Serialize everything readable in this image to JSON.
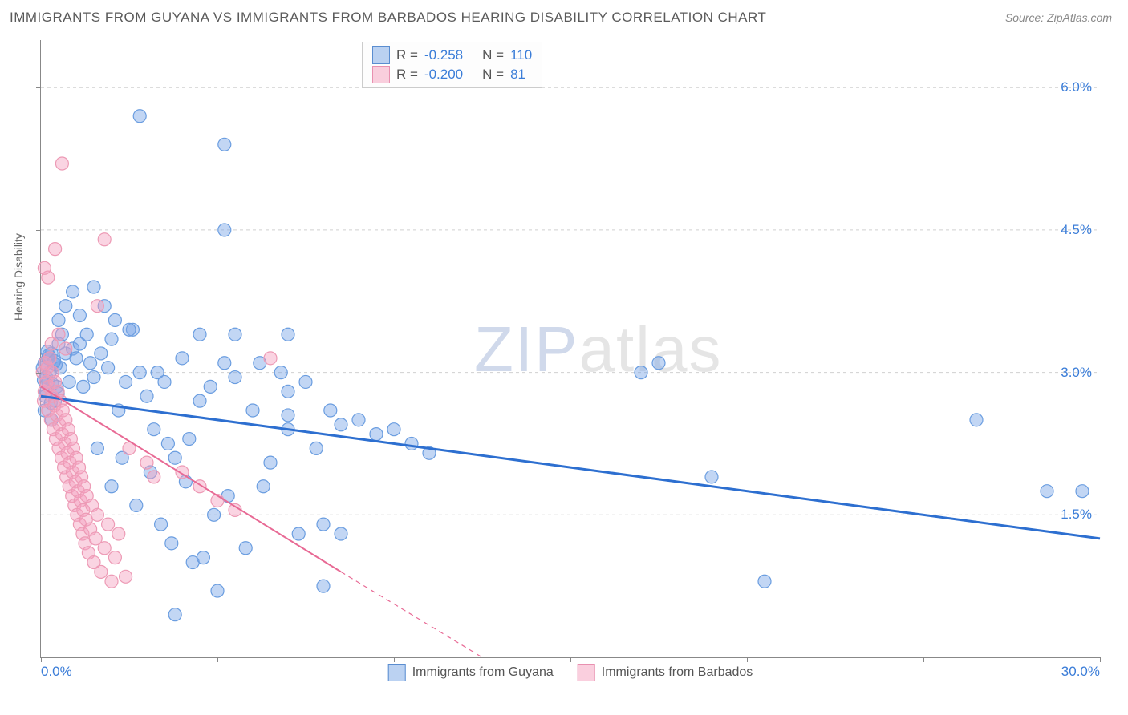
{
  "title": "IMMIGRANTS FROM GUYANA VS IMMIGRANTS FROM BARBADOS HEARING DISABILITY CORRELATION CHART",
  "source": "Source: ZipAtlas.com",
  "ylabel": "Hearing Disability",
  "watermark_a": "ZIP",
  "watermark_b": "atlas",
  "chart": {
    "type": "scatter",
    "xlim": [
      0,
      30
    ],
    "ylim": [
      0,
      6.5
    ],
    "x_tick_labels": {
      "left": "0.0%",
      "right": "30.0%"
    },
    "x_tick_positions": [
      0,
      5,
      10,
      15,
      20,
      25,
      30
    ],
    "y_grid": [
      1.5,
      3.0,
      4.5,
      6.0
    ],
    "y_tick_labels": [
      "1.5%",
      "3.0%",
      "4.5%",
      "6.0%"
    ],
    "background_color": "#ffffff",
    "grid_color": "#d0d0d0",
    "axis_color": "#888888"
  },
  "legend_top": {
    "rows": [
      {
        "swatch": "blue",
        "r_label": "R =",
        "r_val": "-0.258",
        "n_label": "N =",
        "n_val": "110"
      },
      {
        "swatch": "pink",
        "r_label": "R =",
        "r_val": "-0.200",
        "n_label": "N =",
        "n_val": " 81"
      }
    ]
  },
  "legend_bottom": {
    "items": [
      {
        "swatch": "blue",
        "label": "Immigrants from Guyana"
      },
      {
        "swatch": "pink",
        "label": "Immigrants from Barbados"
      }
    ]
  },
  "series": [
    {
      "name": "guyana",
      "color_fill": "rgba(120,165,230,0.45)",
      "color_stroke": "#6a9de0",
      "marker_radius": 8,
      "trend": {
        "x1": 0,
        "y1": 2.75,
        "x2": 30,
        "y2": 1.25,
        "stroke": "#2d6fd0",
        "width": 3,
        "dash": "none"
      },
      "points": [
        [
          0.1,
          3.1
        ],
        [
          0.2,
          2.9
        ],
        [
          0.3,
          3.2
        ],
        [
          0.15,
          2.8
        ],
        [
          0.25,
          3.0
        ],
        [
          0.35,
          3.1
        ],
        [
          0.4,
          2.7
        ],
        [
          0.1,
          2.6
        ],
        [
          0.5,
          3.3
        ],
        [
          0.3,
          2.5
        ],
        [
          0.6,
          3.4
        ],
        [
          0.2,
          3.15
        ],
        [
          0.45,
          2.85
        ],
        [
          0.55,
          3.05
        ],
        [
          0.15,
          2.95
        ],
        [
          0.7,
          3.2
        ],
        [
          0.8,
          2.9
        ],
        [
          0.9,
          3.25
        ],
        [
          1.0,
          3.15
        ],
        [
          1.1,
          3.3
        ],
        [
          1.3,
          3.4
        ],
        [
          1.2,
          2.85
        ],
        [
          1.4,
          3.1
        ],
        [
          1.5,
          2.95
        ],
        [
          1.7,
          3.2
        ],
        [
          1.9,
          3.05
        ],
        [
          2.0,
          3.35
        ],
        [
          2.2,
          2.6
        ],
        [
          2.4,
          2.9
        ],
        [
          2.6,
          3.45
        ],
        [
          2.8,
          3.0
        ],
        [
          2.8,
          5.7
        ],
        [
          3.0,
          2.75
        ],
        [
          3.2,
          2.4
        ],
        [
          3.3,
          3.0
        ],
        [
          3.5,
          2.9
        ],
        [
          3.7,
          1.2
        ],
        [
          3.8,
          2.1
        ],
        [
          3.8,
          0.45
        ],
        [
          4.0,
          3.15
        ],
        [
          4.2,
          2.3
        ],
        [
          4.3,
          1.0
        ],
        [
          4.5,
          2.7
        ],
        [
          4.5,
          3.4
        ],
        [
          4.8,
          2.85
        ],
        [
          5.0,
          0.7
        ],
        [
          5.2,
          3.1
        ],
        [
          5.2,
          4.5
        ],
        [
          5.2,
          5.4
        ],
        [
          5.5,
          2.95
        ],
        [
          5.5,
          3.4
        ],
        [
          6.0,
          2.6
        ],
        [
          6.2,
          3.1
        ],
        [
          6.3,
          1.8
        ],
        [
          6.5,
          2.05
        ],
        [
          6.8,
          3.0
        ],
        [
          7.0,
          2.4
        ],
        [
          7.0,
          2.8
        ],
        [
          7.0,
          3.4
        ],
        [
          7.0,
          2.55
        ],
        [
          7.3,
          1.3
        ],
        [
          7.5,
          2.9
        ],
        [
          7.8,
          2.2
        ],
        [
          8.0,
          0.75
        ],
        [
          8.0,
          1.4
        ],
        [
          8.2,
          2.6
        ],
        [
          8.5,
          1.3
        ],
        [
          8.5,
          2.45
        ],
        [
          9.0,
          2.5
        ],
        [
          9.5,
          2.35
        ],
        [
          10.0,
          2.4
        ],
        [
          10.5,
          2.25
        ],
        [
          11.0,
          2.15
        ],
        [
          1.5,
          3.9
        ],
        [
          1.8,
          3.7
        ],
        [
          2.1,
          3.55
        ],
        [
          2.5,
          3.45
        ],
        [
          0.5,
          3.55
        ],
        [
          0.7,
          3.7
        ],
        [
          0.9,
          3.85
        ],
        [
          1.1,
          3.6
        ],
        [
          17.0,
          3.0
        ],
        [
          17.5,
          3.1
        ],
        [
          19.0,
          1.9
        ],
        [
          20.5,
          0.8
        ],
        [
          26.5,
          2.5
        ],
        [
          29.5,
          1.75
        ],
        [
          2.0,
          1.8
        ],
        [
          2.3,
          2.1
        ],
        [
          2.7,
          1.6
        ],
        [
          3.1,
          1.95
        ],
        [
          3.4,
          1.4
        ],
        [
          3.6,
          2.25
        ],
        [
          4.1,
          1.85
        ],
        [
          4.6,
          1.05
        ],
        [
          4.9,
          1.5
        ],
        [
          5.3,
          1.7
        ],
        [
          5.8,
          1.15
        ],
        [
          1.6,
          2.2
        ],
        [
          28.5,
          1.75
        ],
        [
          0.05,
          3.05
        ],
        [
          0.12,
          2.75
        ],
        [
          0.22,
          3.18
        ],
        [
          0.32,
          2.88
        ],
        [
          0.42,
          3.08
        ],
        [
          0.08,
          2.92
        ],
        [
          0.18,
          3.22
        ],
        [
          0.28,
          2.68
        ],
        [
          0.38,
          3.12
        ],
        [
          0.48,
          2.78
        ]
      ]
    },
    {
      "name": "barbados",
      "color_fill": "rgba(245,160,190,0.45)",
      "color_stroke": "#ed9ab5",
      "marker_radius": 8,
      "trend": {
        "x1": 0,
        "y1": 2.85,
        "x2": 12.5,
        "y2": 0,
        "stroke": "#e86a95",
        "width": 2,
        "dash": "none",
        "dash_ext": {
          "x1": 8.5,
          "y1": 0.9,
          "x2": 12.5,
          "y2": 0,
          "dash": "6,5"
        }
      },
      "points": [
        [
          0.05,
          3.0
        ],
        [
          0.1,
          2.8
        ],
        [
          0.12,
          3.1
        ],
        [
          0.08,
          2.7
        ],
        [
          0.15,
          2.9
        ],
        [
          0.18,
          3.05
        ],
        [
          0.2,
          2.6
        ],
        [
          0.22,
          2.85
        ],
        [
          0.25,
          3.15
        ],
        [
          0.28,
          2.5
        ],
        [
          0.3,
          2.75
        ],
        [
          0.32,
          3.0
        ],
        [
          0.35,
          2.4
        ],
        [
          0.38,
          2.65
        ],
        [
          0.4,
          2.9
        ],
        [
          0.42,
          2.3
        ],
        [
          0.45,
          2.55
        ],
        [
          0.48,
          2.8
        ],
        [
          0.5,
          2.2
        ],
        [
          0.52,
          2.45
        ],
        [
          0.55,
          2.7
        ],
        [
          0.58,
          2.1
        ],
        [
          0.6,
          2.35
        ],
        [
          0.62,
          2.6
        ],
        [
          0.65,
          2.0
        ],
        [
          0.68,
          2.25
        ],
        [
          0.7,
          2.5
        ],
        [
          0.72,
          1.9
        ],
        [
          0.75,
          2.15
        ],
        [
          0.78,
          2.4
        ],
        [
          0.8,
          1.8
        ],
        [
          0.82,
          2.05
        ],
        [
          0.85,
          2.3
        ],
        [
          0.88,
          1.7
        ],
        [
          0.9,
          1.95
        ],
        [
          0.92,
          2.2
        ],
        [
          0.95,
          1.6
        ],
        [
          0.98,
          1.85
        ],
        [
          1.0,
          2.1
        ],
        [
          1.02,
          1.5
        ],
        [
          1.05,
          1.75
        ],
        [
          1.08,
          2.0
        ],
        [
          1.1,
          1.4
        ],
        [
          1.12,
          1.65
        ],
        [
          1.15,
          1.9
        ],
        [
          1.18,
          1.3
        ],
        [
          1.2,
          1.55
        ],
        [
          1.22,
          1.8
        ],
        [
          1.25,
          1.2
        ],
        [
          1.28,
          1.45
        ],
        [
          1.3,
          1.7
        ],
        [
          1.35,
          1.1
        ],
        [
          1.4,
          1.35
        ],
        [
          1.45,
          1.6
        ],
        [
          1.5,
          1.0
        ],
        [
          1.55,
          1.25
        ],
        [
          1.6,
          1.5
        ],
        [
          1.7,
          0.9
        ],
        [
          1.8,
          1.15
        ],
        [
          1.9,
          1.4
        ],
        [
          2.0,
          0.8
        ],
        [
          2.1,
          1.05
        ],
        [
          2.2,
          1.3
        ],
        [
          2.4,
          0.85
        ],
        [
          0.3,
          3.3
        ],
        [
          0.5,
          3.4
        ],
        [
          0.7,
          3.25
        ],
        [
          0.4,
          4.3
        ],
        [
          0.2,
          4.0
        ],
        [
          0.6,
          5.2
        ],
        [
          1.6,
          3.7
        ],
        [
          1.8,
          4.4
        ],
        [
          0.1,
          4.1
        ],
        [
          6.5,
          3.15
        ],
        [
          2.5,
          2.2
        ],
        [
          3.0,
          2.05
        ],
        [
          3.2,
          1.9
        ],
        [
          4.0,
          1.95
        ],
        [
          4.5,
          1.8
        ],
        [
          5.0,
          1.65
        ],
        [
          5.5,
          1.55
        ]
      ]
    }
  ]
}
